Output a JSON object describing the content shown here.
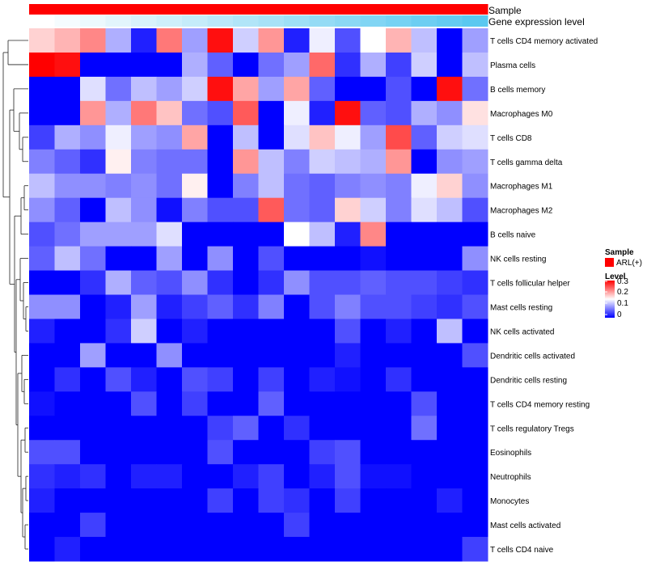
{
  "chart_data": {
    "type": "heatmap",
    "annotation_tracks": [
      {
        "label": "Sample",
        "value": "ARL(+)",
        "color": "#ff0000"
      },
      {
        "label": "Gene expression level",
        "colors_from": "#ffffff",
        "colors_to": "#5ac8f0"
      }
    ],
    "rows": [
      "T cells CD4 memory activated",
      "Plasma cells",
      "B cells memory",
      "Macrophages M0",
      "T cells CD8",
      "T cells gamma delta",
      "Macrophages M1",
      "Macrophages M2",
      "B cells naive",
      "NK cells resting",
      "T cells follicular helper",
      "Mast cells resting",
      "NK cells activated",
      "Dendritic cells activated",
      "Dendritic cells resting",
      "T cells CD4 memory resting",
      "T cells regulatory  Tregs",
      "Eosinophils",
      "Neutrophils",
      "Monocytes",
      "Mast cells activated",
      "T cells CD4 naive"
    ],
    "n_columns": 18,
    "values": [
      [
        0.19,
        0.21,
        0.24,
        0.11,
        0.02,
        0.25,
        0.1,
        0.32,
        0.13,
        0.23,
        0.02,
        0.15,
        0.05,
        0.16,
        0.21,
        0.12,
        0.0,
        0.1
      ],
      [
        0.33,
        0.32,
        0.0,
        0.0,
        0.0,
        0.0,
        0.11,
        0.06,
        0.0,
        0.07,
        0.1,
        0.26,
        0.03,
        0.11,
        0.04,
        0.13,
        0.0,
        0.12
      ],
      [
        0.0,
        0.0,
        0.14,
        0.07,
        0.12,
        0.1,
        0.13,
        0.32,
        0.22,
        0.1,
        0.22,
        0.06,
        0.0,
        0.0,
        0.05,
        0.0,
        0.32,
        0.07
      ],
      [
        0.0,
        0.0,
        0.23,
        0.11,
        0.25,
        0.2,
        0.07,
        0.05,
        0.27,
        0.0,
        0.15,
        0.02,
        0.32,
        0.06,
        0.05,
        0.11,
        0.09,
        0.18
      ],
      [
        0.04,
        0.11,
        0.09,
        0.15,
        0.1,
        0.09,
        0.22,
        0.0,
        0.12,
        0.0,
        0.14,
        0.2,
        0.15,
        0.1,
        0.28,
        0.06,
        0.13,
        0.14
      ],
      [
        0.08,
        0.06,
        0.03,
        0.17,
        0.08,
        0.07,
        0.07,
        0.0,
        0.23,
        0.12,
        0.08,
        0.13,
        0.12,
        0.11,
        0.23,
        0.0,
        0.09,
        0.1
      ],
      [
        0.12,
        0.09,
        0.09,
        0.08,
        0.09,
        0.07,
        0.17,
        0.0,
        0.08,
        0.12,
        0.07,
        0.06,
        0.08,
        0.09,
        0.08,
        0.15,
        0.19,
        0.09
      ],
      [
        0.09,
        0.06,
        0.0,
        0.12,
        0.09,
        0.01,
        0.08,
        0.05,
        0.05,
        0.27,
        0.07,
        0.06,
        0.19,
        0.13,
        0.08,
        0.14,
        0.12,
        0.05
      ],
      [
        0.05,
        0.07,
        0.1,
        0.1,
        0.1,
        0.14,
        0.0,
        0.0,
        0.0,
        0.0,
        0.16,
        0.12,
        0.02,
        0.24,
        0.0,
        0.0,
        0.0,
        0.0
      ],
      [
        0.06,
        0.12,
        0.07,
        0.0,
        0.0,
        0.1,
        0.0,
        0.09,
        0.0,
        0.05,
        0.0,
        0.0,
        0.0,
        0.01,
        0.0,
        0.0,
        0.0,
        0.09
      ],
      [
        0.0,
        0.0,
        0.03,
        0.11,
        0.06,
        0.05,
        0.09,
        0.03,
        0.0,
        0.03,
        0.09,
        0.05,
        0.05,
        0.06,
        0.05,
        0.05,
        0.04,
        0.03
      ],
      [
        0.09,
        0.09,
        0.0,
        0.02,
        0.1,
        0.02,
        0.04,
        0.06,
        0.03,
        0.08,
        0.0,
        0.05,
        0.08,
        0.05,
        0.05,
        0.04,
        0.03,
        0.05
      ],
      [
        0.02,
        0.0,
        0.0,
        0.03,
        0.13,
        0.0,
        0.02,
        0.0,
        0.0,
        0.0,
        0.0,
        0.0,
        0.05,
        0.0,
        0.02,
        0.0,
        0.12,
        0.0
      ],
      [
        0.0,
        0.0,
        0.1,
        0.0,
        0.0,
        0.09,
        0.0,
        0.0,
        0.0,
        0.0,
        0.0,
        0.0,
        0.02,
        0.0,
        0.0,
        0.0,
        0.0,
        0.05
      ],
      [
        0.0,
        0.03,
        0.0,
        0.05,
        0.02,
        0.0,
        0.05,
        0.04,
        0.0,
        0.04,
        0.0,
        0.02,
        0.01,
        0.0,
        0.03,
        0.0,
        0.0,
        0.0
      ],
      [
        0.01,
        0.0,
        0.0,
        0.0,
        0.05,
        0.0,
        0.04,
        0.0,
        0.0,
        0.06,
        0.0,
        0.0,
        0.0,
        0.0,
        0.0,
        0.05,
        0.0,
        0.0
      ],
      [
        0.0,
        0.0,
        0.0,
        0.0,
        0.0,
        0.0,
        0.0,
        0.04,
        0.06,
        0.0,
        0.03,
        0.0,
        0.0,
        0.0,
        0.0,
        0.07,
        0.0,
        0.0
      ],
      [
        0.05,
        0.05,
        0.0,
        0.0,
        0.0,
        0.0,
        0.0,
        0.05,
        0.0,
        0.0,
        0.0,
        0.04,
        0.05,
        0.0,
        0.0,
        0.0,
        0.0,
        0.0
      ],
      [
        0.03,
        0.02,
        0.03,
        0.0,
        0.02,
        0.02,
        0.0,
        0.0,
        0.02,
        0.04,
        0.0,
        0.02,
        0.05,
        0.01,
        0.01,
        0.0,
        0.0,
        0.0
      ],
      [
        0.02,
        0.0,
        0.0,
        0.0,
        0.0,
        0.0,
        0.0,
        0.04,
        0.0,
        0.04,
        0.03,
        0.0,
        0.04,
        0.0,
        0.0,
        0.0,
        0.02,
        0.0
      ],
      [
        0.0,
        0.0,
        0.04,
        0.0,
        0.0,
        0.0,
        0.0,
        0.0,
        0.0,
        0.0,
        0.04,
        0.0,
        0.0,
        0.0,
        0.0,
        0.0,
        0.0,
        0.0
      ],
      [
        0.0,
        0.02,
        0.0,
        0.0,
        0.0,
        0.0,
        0.0,
        0.0,
        0.0,
        0.0,
        0.0,
        0.0,
        0.0,
        0.0,
        0.0,
        0.0,
        0.0,
        0.04
      ]
    ],
    "color_scale": {
      "min": 0,
      "mid": 0.16,
      "max": 0.33,
      "low_color": "#0000ff",
      "mid_color": "#ffffff",
      "high_color": "#ff0000"
    },
    "legend": {
      "sample_title": "Sample",
      "sample_entry": "ARL(+)",
      "level_title": "Level",
      "level_ticks": [
        "0.3",
        "0.2",
        "0.1",
        "0"
      ],
      "position": "right"
    },
    "row_dendrogram": true
  }
}
